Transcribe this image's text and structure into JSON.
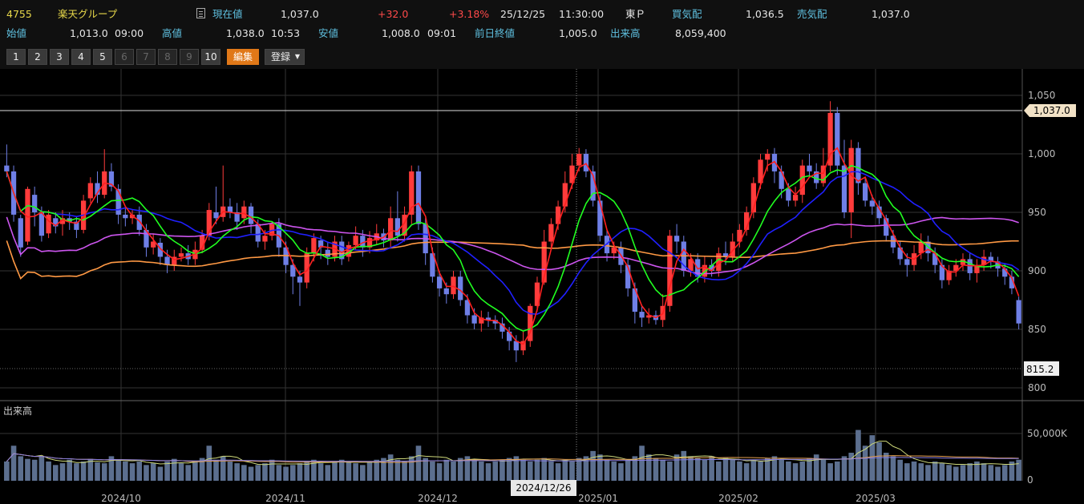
{
  "header": {
    "code": "4755",
    "name": "楽天グループ",
    "current_label": "現在値",
    "current_value": "1,037.0",
    "change": "+32.0",
    "change_pct": "+3.18%",
    "datetime": "25/12/25",
    "time": "11:30:00",
    "market": "東Ｐ",
    "bid_label": "買気配",
    "bid_value": "1,036.5",
    "ask_label": "売気配",
    "ask_value": "1,037.0",
    "open_label": "始値",
    "open_value": "1,013.0",
    "open_time": "09:00",
    "high_label": "高値",
    "high_value": "1,038.0",
    "high_time": "10:53",
    "low_label": "安値",
    "low_value": "1,008.0",
    "low_time": "09:01",
    "prev_label": "前日終値",
    "prev_value": "1,005.0",
    "volume_label": "出来高",
    "volume_value": "8,059,400"
  },
  "toolbar": {
    "numbers": [
      "1",
      "2",
      "3",
      "4",
      "5",
      "6",
      "7",
      "8",
      "9",
      "10"
    ],
    "edit_label": "編集",
    "register_label": "登録"
  },
  "colors": {
    "up": "#ff3b3b",
    "down": "#6f7fe6",
    "ma5": "#ff2020",
    "ma25": "#2020ff",
    "ma10": "#20ff20",
    "ma75": "#cc55ee",
    "ma200": "#ff9944"
  },
  "chart_data": {
    "type": "candlestick",
    "price_axis": {
      "ylim": [
        800,
        1055
      ],
      "ticks": [
        "1,050",
        "1,000",
        "950",
        "900",
        "850",
        "800"
      ]
    },
    "current_price_label": "1,037.0",
    "crosshair_price_label": "815.2",
    "crosshair_date_label": "2024/12/26",
    "x_labels": [
      "2024/10",
      "2024/11",
      "2024/12",
      "2025/01",
      "2025/02",
      "2025/03"
    ],
    "volume_label": "出来高",
    "volume_axis": {
      "ticks": [
        "50,000K",
        "0"
      ]
    },
    "candles": [
      [
        990,
        985,
        1008,
        980
      ],
      [
        985,
        948,
        990,
        942
      ],
      [
        945,
        920,
        948,
        912
      ],
      [
        925,
        970,
        972,
        922
      ],
      [
        965,
        950,
        972,
        938
      ],
      [
        950,
        930,
        955,
        925
      ],
      [
        932,
        948,
        952,
        928
      ],
      [
        945,
        938,
        950,
        932
      ],
      [
        940,
        945,
        952,
        930
      ],
      [
        945,
        942,
        950,
        935
      ],
      [
        942,
        935,
        946,
        928
      ],
      [
        935,
        960,
        965,
        932
      ],
      [
        962,
        975,
        980,
        958
      ],
      [
        975,
        965,
        985,
        958
      ],
      [
        965,
        985,
        1004,
        962
      ],
      [
        985,
        972,
        992,
        968
      ],
      [
        970,
        948,
        974,
        940
      ],
      [
        948,
        945,
        955,
        938
      ],
      [
        945,
        948,
        952,
        940
      ],
      [
        948,
        935,
        955,
        930
      ],
      [
        935,
        920,
        940,
        912
      ],
      [
        920,
        925,
        932,
        914
      ],
      [
        924,
        912,
        928,
        905
      ],
      [
        912,
        905,
        918,
        898
      ],
      [
        905,
        912,
        918,
        900
      ],
      [
        912,
        915,
        920,
        908
      ],
      [
        915,
        910,
        922,
        905
      ],
      [
        910,
        918,
        925,
        905
      ],
      [
        918,
        930,
        935,
        915
      ],
      [
        930,
        952,
        958,
        926
      ],
      [
        950,
        945,
        972,
        940
      ],
      [
        946,
        955,
        990,
        942
      ],
      [
        955,
        950,
        962,
        945
      ],
      [
        950,
        942,
        958,
        935
      ],
      [
        945,
        955,
        960,
        940
      ],
      [
        955,
        940,
        958,
        932
      ],
      [
        940,
        925,
        944,
        920
      ],
      [
        925,
        930,
        935,
        918
      ],
      [
        930,
        940,
        942,
        926
      ],
      [
        940,
        920,
        945,
        912
      ],
      [
        920,
        905,
        925,
        898
      ],
      [
        905,
        895,
        910,
        880
      ],
      [
        895,
        890,
        900,
        870
      ],
      [
        890,
        915,
        920,
        885
      ],
      [
        915,
        928,
        932,
        908
      ],
      [
        926,
        920,
        930,
        910
      ],
      [
        918,
        912,
        925,
        905
      ],
      [
        912,
        925,
        930,
        908
      ],
      [
        925,
        910,
        930,
        905
      ],
      [
        912,
        922,
        925,
        908
      ],
      [
        922,
        930,
        938,
        918
      ],
      [
        930,
        920,
        935,
        912
      ],
      [
        920,
        928,
        934,
        915
      ],
      [
        926,
        932,
        940,
        922
      ],
      [
        932,
        926,
        936,
        920
      ],
      [
        926,
        945,
        955,
        920
      ],
      [
        945,
        930,
        968,
        925
      ],
      [
        930,
        948,
        955,
        925
      ],
      [
        948,
        985,
        990,
        940
      ],
      [
        985,
        940,
        990,
        935
      ],
      [
        940,
        915,
        945,
        905
      ],
      [
        915,
        895,
        920,
        890
      ],
      [
        895,
        885,
        900,
        878
      ],
      [
        885,
        880,
        890,
        872
      ],
      [
        880,
        895,
        900,
        876
      ],
      [
        895,
        875,
        900,
        870
      ],
      [
        875,
        862,
        880,
        855
      ],
      [
        862,
        855,
        868,
        850
      ],
      [
        855,
        860,
        866,
        848
      ],
      [
        860,
        858,
        865,
        852
      ],
      [
        858,
        855,
        862,
        850
      ],
      [
        855,
        848,
        860,
        842
      ],
      [
        848,
        840,
        852,
        832
      ],
      [
        840,
        832,
        845,
        822
      ],
      [
        832,
        840,
        848,
        828
      ],
      [
        840,
        870,
        872,
        835
      ],
      [
        870,
        890,
        895,
        865
      ],
      [
        890,
        925,
        935,
        888
      ],
      [
        925,
        940,
        945,
        920
      ],
      [
        940,
        955,
        960,
        935
      ],
      [
        955,
        975,
        985,
        950
      ],
      [
        975,
        990,
        1000,
        970
      ],
      [
        990,
        1000,
        1005,
        985
      ],
      [
        1000,
        985,
        1004,
        980
      ],
      [
        985,
        960,
        990,
        955
      ],
      [
        960,
        930,
        965,
        925
      ],
      [
        930,
        915,
        935,
        908
      ],
      [
        915,
        920,
        925,
        910
      ],
      [
        920,
        905,
        925,
        898
      ],
      [
        905,
        885,
        910,
        878
      ],
      [
        885,
        865,
        890,
        855
      ],
      [
        865,
        860,
        870,
        852
      ],
      [
        860,
        862,
        868,
        855
      ],
      [
        862,
        858,
        866,
        854
      ],
      [
        858,
        870,
        880,
        852
      ],
      [
        870,
        930,
        935,
        865
      ],
      [
        930,
        925,
        940,
        915
      ],
      [
        925,
        900,
        930,
        895
      ],
      [
        900,
        910,
        915,
        895
      ],
      [
        910,
        895,
        915,
        890
      ],
      [
        895,
        905,
        912,
        890
      ],
      [
        905,
        900,
        910,
        895
      ],
      [
        900,
        915,
        920,
        895
      ],
      [
        915,
        912,
        925,
        905
      ],
      [
        912,
        925,
        932,
        908
      ],
      [
        925,
        935,
        940,
        920
      ],
      [
        935,
        950,
        955,
        930
      ],
      [
        950,
        975,
        980,
        945
      ],
      [
        975,
        995,
        1000,
        970
      ],
      [
        995,
        1000,
        1004,
        985
      ],
      [
        1000,
        985,
        1005,
        975
      ],
      [
        985,
        970,
        990,
        962
      ],
      [
        970,
        960,
        975,
        955
      ],
      [
        960,
        965,
        972,
        955
      ],
      [
        965,
        990,
        995,
        958
      ],
      [
        990,
        985,
        1000,
        980
      ],
      [
        985,
        975,
        992,
        970
      ],
      [
        975,
        990,
        1005,
        972
      ],
      [
        990,
        1035,
        1045,
        985
      ],
      [
        1035,
        990,
        1040,
        982
      ],
      [
        990,
        950,
        1012,
        945
      ],
      [
        950,
        1005,
        1012,
        928
      ],
      [
        1005,
        975,
        1010,
        965
      ],
      [
        975,
        960,
        980,
        955
      ],
      [
        960,
        955,
        965,
        948
      ],
      [
        955,
        945,
        960,
        940
      ],
      [
        945,
        930,
        948,
        925
      ],
      [
        930,
        920,
        935,
        915
      ],
      [
        920,
        910,
        925,
        905
      ],
      [
        910,
        905,
        915,
        895
      ],
      [
        905,
        915,
        922,
        900
      ],
      [
        915,
        925,
        932,
        910
      ],
      [
        925,
        915,
        930,
        908
      ],
      [
        915,
        905,
        920,
        898
      ],
      [
        905,
        892,
        910,
        885
      ],
      [
        892,
        900,
        905,
        888
      ],
      [
        900,
        905,
        910,
        895
      ],
      [
        905,
        910,
        915,
        900
      ],
      [
        910,
        898,
        915,
        892
      ],
      [
        898,
        905,
        910,
        890
      ],
      [
        905,
        912,
        918,
        900
      ],
      [
        912,
        908,
        916,
        902
      ],
      [
        908,
        902,
        912,
        895
      ],
      [
        902,
        895,
        906,
        888
      ],
      [
        895,
        885,
        900,
        880
      ],
      [
        875,
        855,
        878,
        850
      ]
    ],
    "volumes": [
      22,
      40,
      28,
      25,
      24,
      28,
      22,
      18,
      20,
      24,
      20,
      22,
      25,
      21,
      20,
      28,
      24,
      22,
      20,
      22,
      18,
      20,
      16,
      22,
      25,
      20,
      18,
      22,
      26,
      40,
      24,
      28,
      22,
      20,
      18,
      16,
      18,
      20,
      24,
      18,
      16,
      18,
      20,
      22,
      24,
      20,
      18,
      22,
      24,
      22,
      20,
      18,
      22,
      24,
      26,
      30,
      24,
      22,
      28,
      40,
      26,
      22,
      20,
      24,
      22,
      26,
      28,
      24,
      22,
      20,
      22,
      24,
      26,
      28,
      24,
      22,
      24,
      26,
      22,
      20,
      24,
      22,
      26,
      28,
      34,
      30,
      24,
      22,
      20,
      24,
      28,
      40,
      30,
      26,
      24,
      22,
      30,
      34,
      28,
      26,
      24,
      28,
      22,
      26,
      24,
      22,
      20,
      24,
      22,
      26,
      28,
      24,
      22,
      20,
      22,
      26,
      30,
      24,
      20,
      22,
      28,
      32,
      58,
      40,
      52,
      44,
      32,
      28,
      24,
      20,
      22,
      20,
      18,
      22,
      20,
      18,
      16,
      18,
      20,
      22,
      20,
      18,
      16,
      18,
      22,
      24
    ]
  }
}
